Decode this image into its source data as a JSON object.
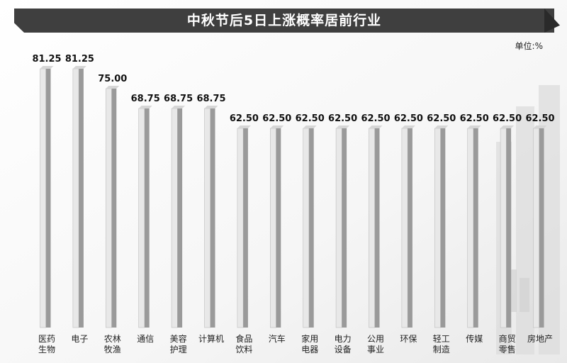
{
  "title": "中秋节后5日上涨概率居前行业",
  "unit": "单位:%",
  "colors": {
    "title_bg": "#3f3f3f",
    "bar_light": "#e8e8e8",
    "bar_dark": "#9a9a9a",
    "text": "#111111"
  },
  "chart_data": {
    "type": "bar",
    "title": "中秋节后5日上涨概率居前行业",
    "unit": "单位:%",
    "categories": [
      [
        "医药",
        "生物"
      ],
      [
        "电子"
      ],
      [
        "农林",
        "牧渔"
      ],
      [
        "通信"
      ],
      [
        "美容",
        "护理"
      ],
      [
        "计算机"
      ],
      [
        "食品",
        "饮料"
      ],
      [
        "汽车"
      ],
      [
        "家用",
        "电器"
      ],
      [
        "电力",
        "设备"
      ],
      [
        "公用",
        "事业"
      ],
      [
        "环保"
      ],
      [
        "轻工",
        "制造"
      ],
      [
        "传媒"
      ],
      [
        "商贸",
        "零售"
      ],
      [
        "房地产"
      ]
    ],
    "values": [
      81.25,
      81.25,
      75.0,
      68.75,
      68.75,
      68.75,
      62.5,
      62.5,
      62.5,
      62.5,
      62.5,
      62.5,
      62.5,
      62.5,
      62.5,
      62.5
    ],
    "value_labels": [
      "81.25",
      "81.25",
      "75.00",
      "68.75",
      "68.75",
      "68.75",
      "62.50",
      "62.50",
      "62.50",
      "62.50",
      "62.50",
      "62.50",
      "62.50",
      "62.50",
      "62.50",
      "62.50"
    ],
    "ylim": [
      0,
      100
    ],
    "grid": false,
    "legend": "none"
  }
}
